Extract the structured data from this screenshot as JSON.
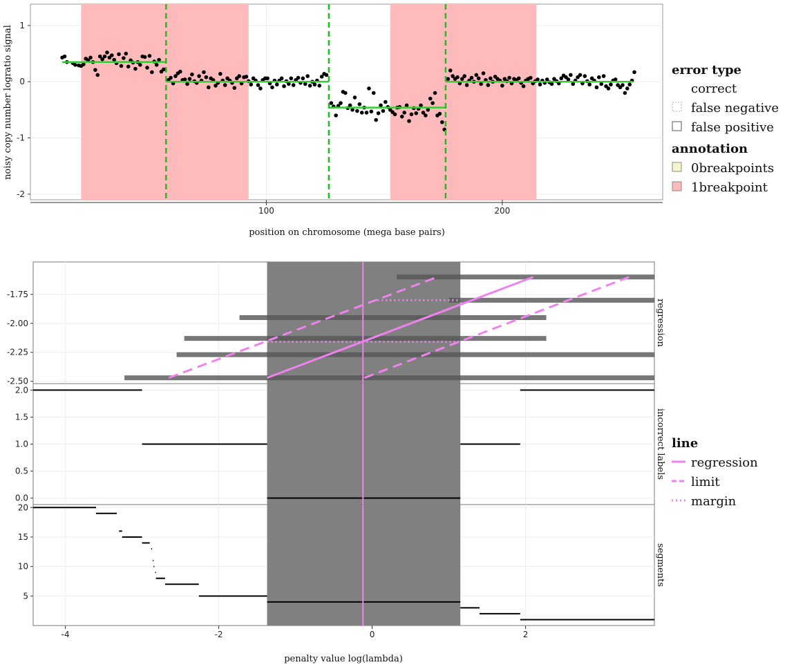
{
  "chart_data": [
    {
      "type": "scatter",
      "xlabel": "position on chromosome (mega base pairs)",
      "ylabel": "noisy copy number logratio signal",
      "xlim": [
        0,
        268
      ],
      "ylim": [
        -2.1,
        1.38
      ],
      "xticks": [
        100,
        200
      ],
      "yticks": [
        -2,
        -1,
        0,
        1
      ],
      "regions": [
        {
          "x0": 21.5,
          "x1": 57.5,
          "annotation": "1breakpoint"
        },
        {
          "x0": 57.5,
          "x1": 92.5,
          "annotation": "1breakpoint"
        },
        {
          "x0": 152.5,
          "x1": 214.5,
          "annotation": "1breakpoint"
        }
      ],
      "breakpoints": [
        57.5,
        126.5,
        176.0
      ],
      "segments": [
        {
          "x0": 13.5,
          "x1": 57.5,
          "y": 0.35
        },
        {
          "x0": 57.5,
          "x1": 126.5,
          "y": 0.0
        },
        {
          "x0": 126.5,
          "x1": 176.0,
          "y": -0.46
        },
        {
          "x0": 176.0,
          "x1": 255.5,
          "y": 0.0
        }
      ],
      "points": [
        [
          13.5,
          0.43
        ],
        [
          14.5,
          0.45
        ],
        [
          15.5,
          0.35
        ],
        [
          18,
          0.33
        ],
        [
          19,
          0.3
        ],
        [
          20.5,
          0.29
        ],
        [
          21.5,
          0.28
        ],
        [
          22.5,
          0.31
        ],
        [
          23.5,
          0.41
        ],
        [
          24.5,
          0.38
        ],
        [
          25.5,
          0.43
        ],
        [
          26.5,
          0.35
        ],
        [
          27.5,
          0.21
        ],
        [
          28.5,
          0.12
        ],
        [
          29.5,
          0.45
        ],
        [
          30.5,
          0.4
        ],
        [
          31.5,
          0.45
        ],
        [
          32.5,
          0.52
        ],
        [
          33.5,
          0.43
        ],
        [
          34.5,
          0.47
        ],
        [
          35.5,
          0.39
        ],
        [
          36.5,
          0.33
        ],
        [
          37.5,
          0.49
        ],
        [
          38.5,
          0.28
        ],
        [
          39.5,
          0.42
        ],
        [
          40.5,
          0.5
        ],
        [
          41.5,
          0.27
        ],
        [
          42.5,
          0.38
        ],
        [
          43.5,
          0.34
        ],
        [
          44.5,
          0.23
        ],
        [
          45.5,
          0.35
        ],
        [
          46.5,
          0.3
        ],
        [
          47.5,
          0.45
        ],
        [
          48.5,
          0.44
        ],
        [
          49.5,
          0.25
        ],
        [
          50.5,
          0.46
        ],
        [
          51.5,
          0.17
        ],
        [
          52.5,
          0.36
        ],
        [
          53.5,
          0.3
        ],
        [
          54.5,
          0.39
        ],
        [
          55.5,
          0.18
        ],
        [
          56.5,
          0.22
        ],
        [
          58.5,
          0.03
        ],
        [
          59.5,
          0.07
        ],
        [
          60.5,
          -0.03
        ],
        [
          61.5,
          0.1
        ],
        [
          62.5,
          0.15
        ],
        [
          63.5,
          0.18
        ],
        [
          64.5,
          0.03
        ],
        [
          65.5,
          0.04
        ],
        [
          66.5,
          -0.04
        ],
        [
          67.5,
          0.05
        ],
        [
          68.5,
          0.13
        ],
        [
          69.5,
          0.01
        ],
        [
          70.5,
          -0.02
        ],
        [
          71.5,
          0.1
        ],
        [
          72.5,
          0.02
        ],
        [
          73.5,
          0.17
        ],
        [
          74.5,
          0.08
        ],
        [
          75.5,
          -0.1
        ],
        [
          76.5,
          0.06
        ],
        [
          77.5,
          0.03
        ],
        [
          78.5,
          -0.07
        ],
        [
          79.5,
          -0.02
        ],
        [
          80.5,
          0.14
        ],
        [
          81.5,
          0.02
        ],
        [
          82.5,
          -0.06
        ],
        [
          83.5,
          0.06
        ],
        [
          84.5,
          0.02
        ],
        [
          85.5,
          -0.02
        ],
        [
          86.5,
          -0.11
        ],
        [
          87.5,
          0.06
        ],
        [
          88.5,
          0.1
        ],
        [
          89.5,
          -0.03
        ],
        [
          90.5,
          0.08
        ],
        [
          91.5,
          0.09
        ],
        [
          92.5,
          0.01
        ],
        [
          93.5,
          -0.05
        ],
        [
          94.5,
          0.06
        ],
        [
          95.5,
          0.02
        ],
        [
          96.5,
          -0.06
        ],
        [
          97.5,
          -0.12
        ],
        [
          98.5,
          0.03
        ],
        [
          99.5,
          0.06
        ],
        [
          100.5,
          0.06
        ],
        [
          101.5,
          -0.03
        ],
        [
          102.5,
          -0.1
        ],
        [
          103.5,
          0.02
        ],
        [
          104.5,
          -0.05
        ],
        [
          105.5,
          0.02
        ],
        [
          106.5,
          0.06
        ],
        [
          107.5,
          -0.08
        ],
        [
          108.5,
          0.01
        ],
        [
          109.5,
          -0.04
        ],
        [
          110.5,
          0.06
        ],
        [
          111.5,
          -0.06
        ],
        [
          112.5,
          0.03
        ],
        [
          113.5,
          0.07
        ],
        [
          114.5,
          -0.02
        ],
        [
          115.5,
          0.06
        ],
        [
          116.5,
          -0.04
        ],
        [
          117.5,
          0.1
        ],
        [
          118.5,
          -0.07
        ],
        [
          119.5,
          0.0
        ],
        [
          120.5,
          -0.05
        ],
        [
          121.5,
          0.02
        ],
        [
          122.5,
          -0.07
        ],
        [
          123.5,
          0.09
        ],
        [
          124.5,
          0.14
        ],
        [
          125.5,
          0.12
        ],
        [
          127.5,
          -0.38
        ],
        [
          128.5,
          -0.44
        ],
        [
          129.5,
          -0.6
        ],
        [
          130.5,
          -0.43
        ],
        [
          131.5,
          -0.38
        ],
        [
          132.5,
          -0.18
        ],
        [
          133.5,
          -0.2
        ],
        [
          134.5,
          -0.47
        ],
        [
          135.5,
          -0.42
        ],
        [
          136.5,
          -0.5
        ],
        [
          137.5,
          -0.28
        ],
        [
          138.5,
          -0.52
        ],
        [
          139.5,
          -0.4
        ],
        [
          140.5,
          -0.55
        ],
        [
          141.5,
          -0.46
        ],
        [
          142.5,
          -0.55
        ],
        [
          143.5,
          -0.12
        ],
        [
          144.5,
          -0.53
        ],
        [
          145.5,
          -0.2
        ],
        [
          146.5,
          -0.68
        ],
        [
          147.5,
          -0.56
        ],
        [
          148.5,
          -0.42
        ],
        [
          149.5,
          -0.52
        ],
        [
          150.5,
          -0.36
        ],
        [
          151.5,
          -0.45
        ],
        [
          152.5,
          -0.5
        ],
        [
          153.5,
          -0.54
        ],
        [
          154.5,
          -0.58
        ],
        [
          155.5,
          -0.46
        ],
        [
          156.5,
          -0.45
        ],
        [
          157.5,
          -0.62
        ],
        [
          158.5,
          -0.55
        ],
        [
          159.5,
          -0.42
        ],
        [
          160.5,
          -0.7
        ],
        [
          161.5,
          -0.58
        ],
        [
          162.5,
          -0.47
        ],
        [
          163.5,
          -0.56
        ],
        [
          164.5,
          -0.48
        ],
        [
          165.5,
          -0.42
        ],
        [
          166.5,
          -0.55
        ],
        [
          167.5,
          -0.6
        ],
        [
          168.5,
          -0.5
        ],
        [
          169.5,
          -0.3
        ],
        [
          170.5,
          -0.38
        ],
        [
          171.5,
          -0.2
        ],
        [
          172.5,
          -0.6
        ],
        [
          173.5,
          -0.57
        ],
        [
          174.5,
          -0.72
        ],
        [
          175.5,
          -0.85
        ],
        [
          177,
          0.05
        ],
        [
          178,
          0.2
        ],
        [
          179,
          0.1
        ],
        [
          180,
          0.05
        ],
        [
          181,
          0.08
        ],
        [
          182,
          -0.03
        ],
        [
          183,
          0.05
        ],
        [
          184,
          0.1
        ],
        [
          185,
          -0.06
        ],
        [
          186,
          0.02
        ],
        [
          187,
          0.07
        ],
        [
          188,
          0.0
        ],
        [
          189,
          0.12
        ],
        [
          190,
          0.06
        ],
        [
          191,
          -0.04
        ],
        [
          192,
          0.15
        ],
        [
          193,
          0.03
        ],
        [
          194,
          -0.06
        ],
        [
          195,
          0.06
        ],
        [
          196,
          0.0
        ],
        [
          197,
          0.09
        ],
        [
          198,
          0.05
        ],
        [
          199,
          0.02
        ],
        [
          200,
          -0.07
        ],
        [
          201,
          0.05
        ],
        [
          202,
          0.01
        ],
        [
          203,
          0.07
        ],
        [
          204,
          -0.03
        ],
        [
          205,
          0.05
        ],
        [
          206,
          0.03
        ],
        [
          207,
          0.06
        ],
        [
          208,
          -0.02
        ],
        [
          209,
          -0.08
        ],
        [
          210,
          0.02
        ],
        [
          211,
          0.05
        ],
        [
          212,
          0.07
        ],
        [
          213,
          -0.03
        ],
        [
          214,
          0.01
        ],
        [
          215,
          0.04
        ],
        [
          216,
          -0.05
        ],
        [
          217,
          0.02
        ],
        [
          218,
          -0.02
        ],
        [
          219,
          0.04
        ],
        [
          220,
          -0.01
        ],
        [
          221,
          -0.04
        ],
        [
          222,
          0.05
        ],
        [
          223,
          0.01
        ],
        [
          224,
          -0.03
        ],
        [
          225,
          0.06
        ],
        [
          226,
          0.11
        ],
        [
          227,
          0.08
        ],
        [
          228,
          0.04
        ],
        [
          229,
          0.12
        ],
        [
          230,
          -0.04
        ],
        [
          231,
          0.02
        ],
        [
          232,
          0.08
        ],
        [
          233,
          0.12
        ],
        [
          234,
          -0.03
        ],
        [
          235,
          0.1
        ],
        [
          236,
          0.01
        ],
        [
          237,
          -0.05
        ],
        [
          238,
          0.06
        ],
        [
          239,
          0.02
        ],
        [
          240,
          -0.1
        ],
        [
          241,
          0.08
        ],
        [
          242,
          -0.04
        ],
        [
          243,
          0.1
        ],
        [
          244,
          -0.08
        ],
        [
          245,
          -0.12
        ],
        [
          246,
          -0.05
        ],
        [
          247,
          0.02
        ],
        [
          248,
          0.04
        ],
        [
          249,
          -0.06
        ],
        [
          250,
          -0.1
        ],
        [
          251,
          -0.06
        ],
        [
          252,
          -0.2
        ],
        [
          253,
          -0.12
        ],
        [
          254,
          -0.05
        ],
        [
          255,
          0.02
        ],
        [
          256,
          0.17
        ]
      ]
    },
    {
      "type": "line",
      "xlabel": "penalty value log(lambda)",
      "xlim": [
        -4.42,
        3.68
      ],
      "xticks": [
        -4,
        -2,
        0,
        2
      ],
      "target_interval": [
        -1.37,
        1.15
      ],
      "predicted": -0.12,
      "panels": [
        {
          "label": "regression",
          "ylim": [
            -2.52,
            -1.47
          ],
          "yticks": [
            -2.5,
            -2.25,
            -2.0,
            -1.75
          ],
          "ytick_labels": [
            "-2.50",
            "-2.25",
            "-2.00",
            "-1.75"
          ],
          "bars": [
            {
              "x0": 0.32,
              "x1": 3.68,
              "y": -1.6
            },
            {
              "x0": 1.0,
              "x1": 3.68,
              "y": -1.8
            },
            {
              "x0": -1.73,
              "x1": 2.27,
              "y": -1.95
            },
            {
              "x0": -2.45,
              "x1": 2.27,
              "y": -2.13
            },
            {
              "x0": -2.55,
              "x1": 3.68,
              "y": -2.27
            },
            {
              "x0": -3.23,
              "x1": 3.68,
              "y": -2.47
            }
          ],
          "regression": {
            "x0": -1.37,
            "y0": -2.47,
            "x1": 2.1,
            "y1": -1.6
          },
          "limits": [
            {
              "x0": -2.65,
              "y0": -2.47,
              "x1": 0.85,
              "y1": -1.6
            },
            {
              "x0": -0.1,
              "y0": -2.47,
              "x1": 3.35,
              "y1": -1.6
            }
          ],
          "margins": [
            {
              "x0": 0.07,
              "x1": 1.15,
              "y": -1.8
            },
            {
              "x0": -1.37,
              "x1": 1.15,
              "y": -2.16
            }
          ]
        },
        {
          "label": "incorrect labels",
          "ylim": [
            -0.12,
            2.12
          ],
          "yticks": [
            0,
            0.5,
            1,
            1.5,
            2
          ],
          "ytick_labels": [
            "0.0",
            "0.5",
            "1.0",
            "1.5",
            "2.0"
          ],
          "steps": [
            {
              "x0": -4.42,
              "x1": -3.0,
              "y": 2
            },
            {
              "x0": -3.0,
              "x1": -1.37,
              "y": 1
            },
            {
              "x0": -1.37,
              "x1": 1.15,
              "y": 0
            },
            {
              "x0": 1.15,
              "x1": 1.93,
              "y": 1
            },
            {
              "x0": 1.93,
              "x1": 3.68,
              "y": 2
            }
          ]
        },
        {
          "label": "segments",
          "ylim": [
            0.0,
            20.5
          ],
          "yticks": [
            5,
            10,
            15,
            20
          ],
          "ytick_labels": [
            "5",
            "10",
            "15",
            "20"
          ],
          "steps": [
            {
              "x0": -4.42,
              "x1": -3.6,
              "y": 20
            },
            {
              "x0": -3.6,
              "x1": -3.33,
              "y": 19
            },
            {
              "x0": -3.3,
              "x1": -3.26,
              "y": 16
            },
            {
              "x0": -3.26,
              "x1": -3.0,
              "y": 15
            },
            {
              "x0": -3.0,
              "x1": -2.9,
              "y": 14
            },
            {
              "x0": -2.88,
              "x1": -2.87,
              "y": 13
            },
            {
              "x0": -2.86,
              "x1": -2.85,
              "y": 11
            },
            {
              "x0": -2.85,
              "x1": -2.84,
              "y": 10
            },
            {
              "x0": -2.83,
              "x1": -2.82,
              "y": 9
            },
            {
              "x0": -2.82,
              "x1": -2.7,
              "y": 8
            },
            {
              "x0": -2.7,
              "x1": -2.26,
              "y": 7
            },
            {
              "x0": -2.26,
              "x1": -1.37,
              "y": 5
            },
            {
              "x0": -1.37,
              "x1": 1.15,
              "y": 4
            },
            {
              "x0": 1.15,
              "x1": 1.4,
              "y": 3
            },
            {
              "x0": 1.4,
              "x1": 1.93,
              "y": 2
            },
            {
              "x0": 1.93,
              "x1": 3.68,
              "y": 1
            }
          ]
        }
      ]
    }
  ],
  "legend_top": {
    "error_title": "error type",
    "error_items": [
      "correct",
      "false negative",
      "false positive"
    ],
    "annotation_title": "annotation",
    "annotation_items": [
      {
        "label": "0breakpoints",
        "color": "#f6f6cc"
      },
      {
        "label": "1breakpoint",
        "color": "#ffbbbb"
      }
    ]
  },
  "legend_bottom": {
    "title": "line",
    "items": [
      {
        "label": "regression",
        "dash": "solid"
      },
      {
        "label": "limit",
        "dash": "dashed"
      },
      {
        "label": "margin",
        "dash": "dotted"
      }
    ]
  },
  "colors": {
    "region": "#ffbbbb",
    "segment": "#33cc33",
    "breakpoint": "#22bb22",
    "target": "#808080",
    "violet": "#ee82ee",
    "bar": "#555555"
  }
}
